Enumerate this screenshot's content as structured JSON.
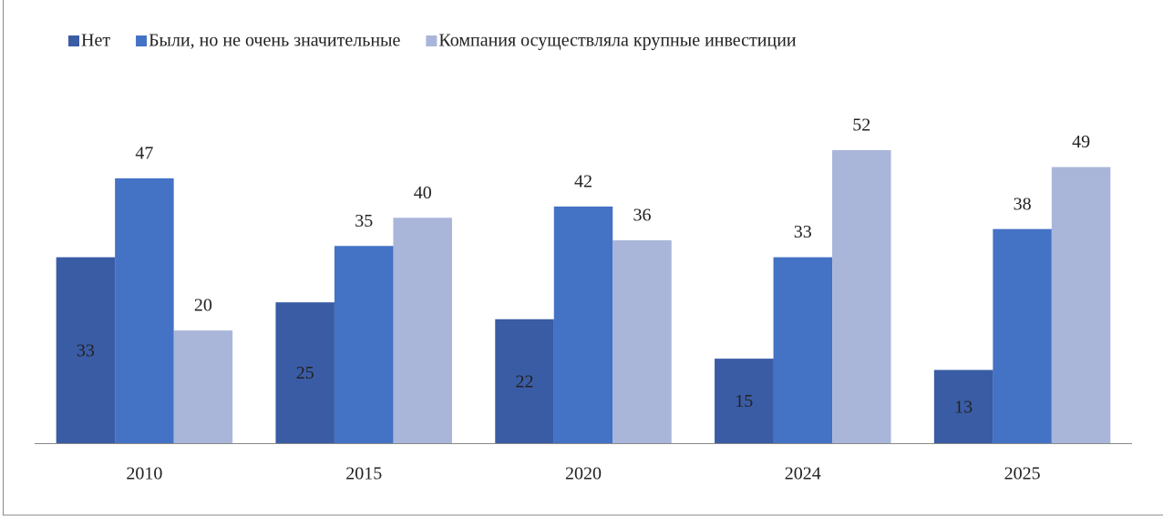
{
  "chart_data": {
    "type": "bar",
    "categories": [
      "2010",
      "2015",
      "2020",
      "2024",
      "2025"
    ],
    "series": [
      {
        "name": "Нет",
        "color": "#3a5ca5",
        "values": [
          33,
          25,
          22,
          15,
          13
        ]
      },
      {
        "name": "Были, но не очень значительные",
        "color": "#4472c4",
        "values": [
          47,
          35,
          42,
          33,
          38
        ]
      },
      {
        "name": "Компания осуществляла крупные инвестиции",
        "color": "#a9b6da",
        "values": [
          20,
          40,
          36,
          52,
          49
        ]
      }
    ]
  }
}
